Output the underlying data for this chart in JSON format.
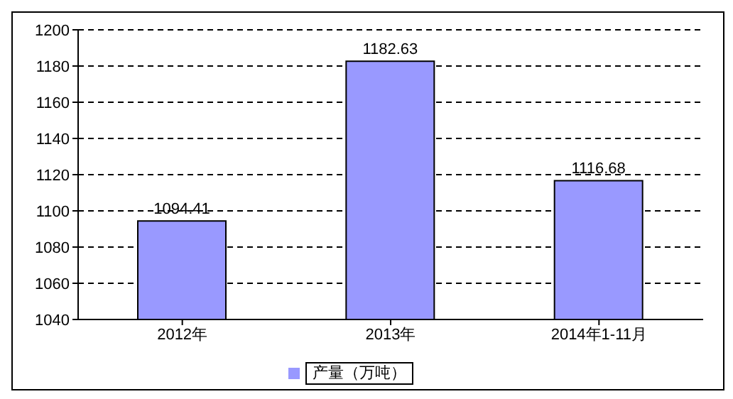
{
  "chart_data": {
    "type": "bar",
    "categories": [
      "2012年",
      "2013年",
      "2014年1-11月"
    ],
    "series": [
      {
        "name": "产量（万吨）",
        "color": "#9999ff",
        "values": [
          1094.41,
          1182.63,
          1116.68
        ]
      }
    ],
    "ylim": [
      1040,
      1200
    ],
    "yticks": [
      1040,
      1060,
      1080,
      1100,
      1120,
      1140,
      1160,
      1180,
      1200
    ],
    "grid": "y",
    "legend": "bottom",
    "data_labels": true
  }
}
